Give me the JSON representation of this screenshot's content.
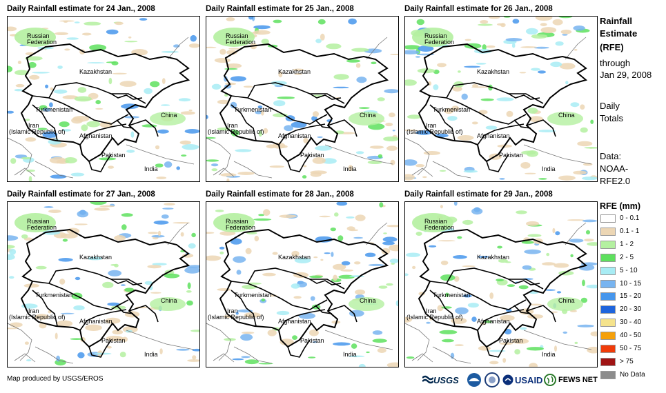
{
  "panels": [
    {
      "title": "Daily Rainfall estimate for 24 Jan., 2008"
    },
    {
      "title": "Daily Rainfall estimate for 25 Jan., 2008"
    },
    {
      "title": "Daily Rainfall estimate for 26 Jan., 2008"
    },
    {
      "title": "Daily Rainfall estimate for 27 Jan., 2008"
    },
    {
      "title": "Daily Rainfall estimate for 28 Jan., 2008"
    },
    {
      "title": "Daily Rainfall estimate for 29 Jan., 2008"
    }
  ],
  "map_labels": {
    "russia_1": "Russian",
    "russia_2": "Federation",
    "kazakhstan": "Kazakhstan",
    "turkmenistan": "Turkmenistan",
    "china": "China",
    "iran_1": "Iran",
    "iran_2": "(Islamic Republic of)",
    "afghanistan": "Afghanistan",
    "pakistan": "Pakistan",
    "india": "India"
  },
  "side": {
    "title_1": "Rainfall",
    "title_2": "Estimate",
    "title_3": "(RFE)",
    "through": "through",
    "date": "Jan 29, 2008",
    "daily": "Daily",
    "totals": "Totals",
    "data": "Data:",
    "source_1": "NOAA-",
    "source_2": "RFE2.0"
  },
  "legend": {
    "title": "RFE (mm)",
    "items": [
      {
        "label": "0 - 0.1",
        "color": "#ffffff"
      },
      {
        "label": "0.1 - 1",
        "color": "#ecd6b4"
      },
      {
        "label": "1 - 2",
        "color": "#b4f0a0"
      },
      {
        "label": "2 - 5",
        "color": "#5ee05e"
      },
      {
        "label": "5 - 10",
        "color": "#a8ecf4"
      },
      {
        "label": "10 - 15",
        "color": "#78b4f0"
      },
      {
        "label": "15 - 20",
        "color": "#4696ec"
      },
      {
        "label": "20 - 30",
        "color": "#1e64dc"
      },
      {
        "label": "30 - 40",
        "color": "#f5e38c"
      },
      {
        "label": "40 - 50",
        "color": "#f5a00a"
      },
      {
        "label": "50 - 75",
        "color": "#f03c0a"
      },
      {
        "label": "> 75",
        "color": "#a01414"
      },
      {
        "label": "No Data",
        "color": "#8c8c8c"
      }
    ]
  },
  "footer": "Map produced by USGS/EROS",
  "logos": {
    "usgs": "USGS",
    "usaid": "USAID",
    "fewsnet": "FEWS NET"
  }
}
